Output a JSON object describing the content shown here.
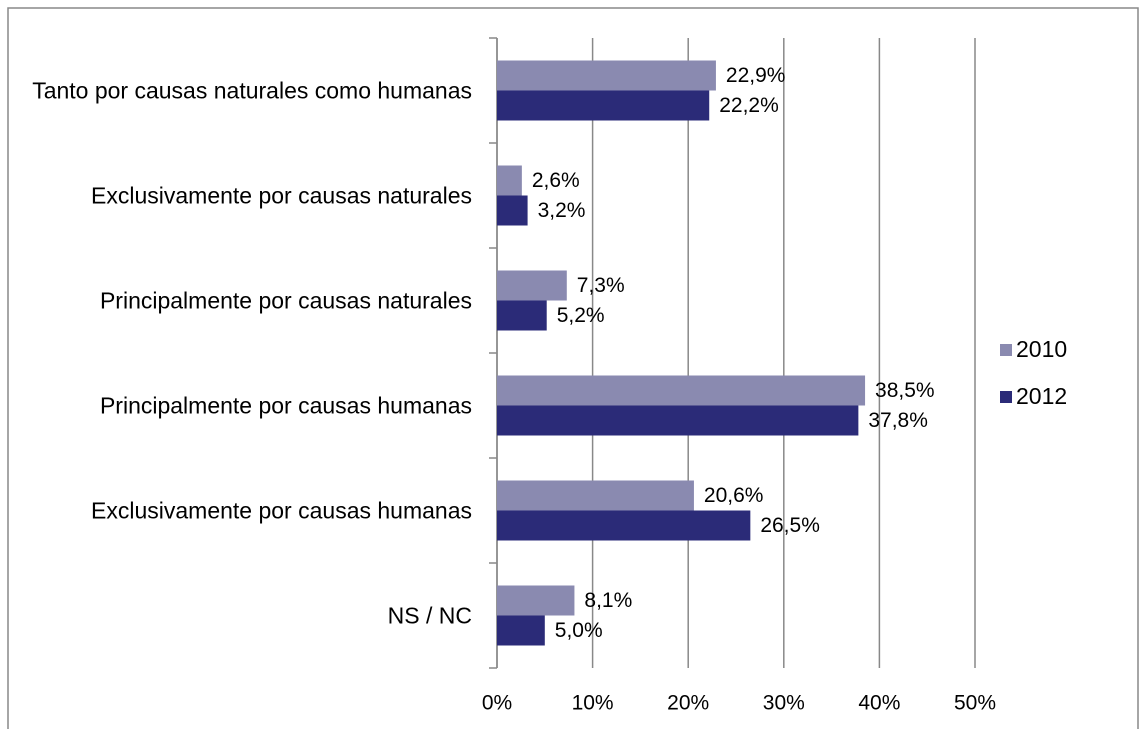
{
  "chart_data": {
    "type": "hbar",
    "categories": [
      "Tanto por causas naturales como humanas",
      "Exclusivamente por causas naturales",
      "Principalmente por causas naturales",
      "Principalmente por causas humanas",
      "Exclusivamente por causas humanas",
      "NS / NC"
    ],
    "series": [
      {
        "name": "2010",
        "color": "#8a8ab0",
        "values": [
          22.9,
          2.6,
          7.3,
          38.5,
          20.6,
          8.1
        ],
        "value_labels": [
          "22,9%",
          "2,6%",
          "7,3%",
          "38,5%",
          "20,6%",
          "8,1%"
        ]
      },
      {
        "name": "2012",
        "color": "#2b2b78",
        "values": [
          22.2,
          3.2,
          5.2,
          37.8,
          26.5,
          5.0
        ],
        "value_labels": [
          "22,2%",
          "3,2%",
          "5,2%",
          "37,8%",
          "26,5%",
          "5,0%"
        ]
      }
    ],
    "xlim": [
      0,
      50
    ],
    "xticks": [
      {
        "value": 0,
        "label": "0%"
      },
      {
        "value": 10,
        "label": "10%"
      },
      {
        "value": 20,
        "label": "20%"
      },
      {
        "value": 30,
        "label": "30%"
      },
      {
        "value": 40,
        "label": "40%"
      },
      {
        "value": 50,
        "label": "50%"
      }
    ],
    "grid": true,
    "legend": "right"
  }
}
